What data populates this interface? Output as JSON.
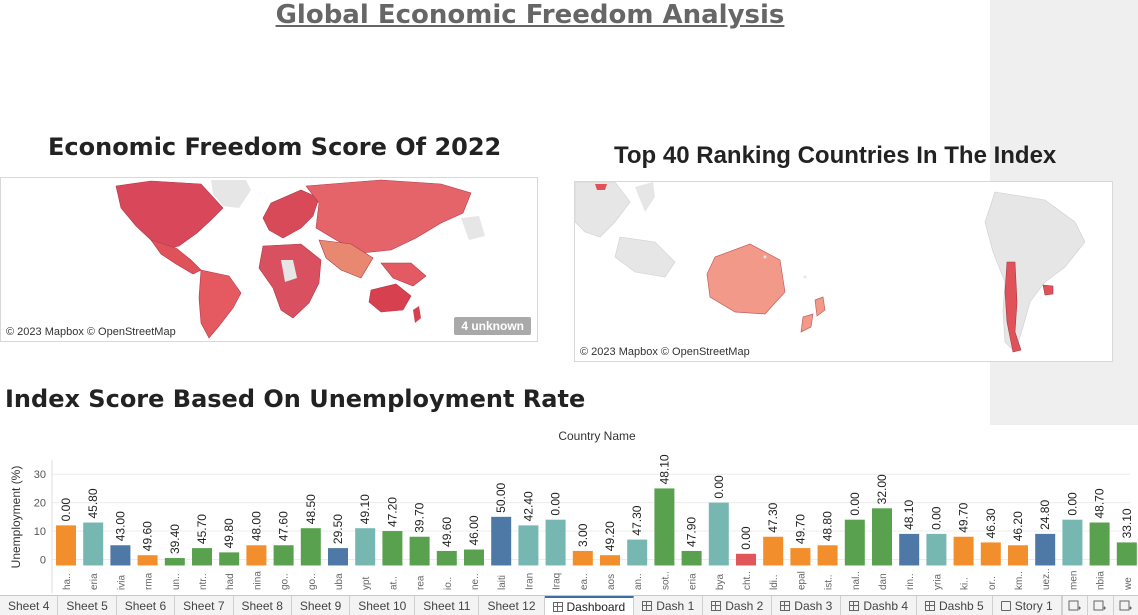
{
  "dashboard": {
    "title": "Global  Economic Freedom Analysis"
  },
  "map_left": {
    "title": "Economic Freedom Score Of 2022",
    "attribution": "© 2023 Mapbox © OpenStreetMap",
    "unknown_badge": "4 unknown"
  },
  "map_right": {
    "title": "Top 40 Ranking Countries In The Index",
    "attribution": "© 2023 Mapbox © OpenStreetMap"
  },
  "colors": {
    "orange": "#f28e2b",
    "teal": "#76b7b2",
    "blue": "#4e79a7",
    "green": "#59a14f",
    "red": "#e15759",
    "map_red": "#e0525a",
    "map_salmon": "#f2998a",
    "land_grey": "#e6e6e6"
  },
  "chart_data": {
    "type": "bar",
    "title": "Index Score Based On Unemployment Rate",
    "header": "Country Name",
    "ylabel": "Unemployment (%)",
    "yticks": [
      0,
      10,
      20,
      30
    ],
    "ylim": [
      -3,
      35
    ],
    "categories": [
      "ha..",
      "eria",
      "ivia",
      "rma",
      "un..",
      "ntr..",
      "had",
      "nina",
      "go..",
      "go..",
      "uba",
      "ypt",
      "at..",
      "rea",
      "io..",
      "ne..",
      "laiti",
      "Iran",
      "Iraq",
      "ea..",
      "aos",
      "an..",
      "sot..",
      "eria",
      "bya",
      "cht..",
      "ldi..",
      "epal",
      "ist..",
      "nal..",
      "dan",
      "rin..",
      "yria",
      "ki..",
      "or..",
      "km..",
      "uez..",
      "men",
      "nbia",
      "we"
    ],
    "values": [
      12,
      13,
      5,
      1.5,
      0.5,
      4,
      2.5,
      5,
      5,
      11,
      4,
      11,
      10,
      8,
      3,
      3.5,
      15,
      12,
      14,
      3,
      1.5,
      7,
      25,
      3,
      20,
      2,
      8,
      4,
      5,
      14,
      18,
      9,
      9,
      8,
      6,
      5,
      9,
      14,
      13,
      6
    ],
    "labels": [
      "0.00",
      "45.80",
      "43.00",
      "49.60",
      "39.40",
      "45.70",
      "49.80",
      "48.00",
      "47.60",
      "48.50",
      "29.50",
      "49.10",
      "47.20",
      "39.70",
      "49.60",
      "46.00",
      "50.00",
      "42.40",
      "0.00",
      "3.00",
      "49.20",
      "47.30",
      "48.10",
      "47.90",
      "0.00",
      "0.00",
      "47.30",
      "49.70",
      "48.80",
      "0.00",
      "32.00",
      "48.10",
      "0.00",
      "49.70",
      "46.30",
      "46.20",
      "24.80",
      "0.00",
      "48.70",
      "33.10"
    ],
    "colors": [
      "orange",
      "teal",
      "blue",
      "orange",
      "green",
      "green",
      "green",
      "orange",
      "green",
      "green",
      "blue",
      "teal",
      "green",
      "green",
      "green",
      "green",
      "blue",
      "teal",
      "teal",
      "orange",
      "orange",
      "teal",
      "green",
      "green",
      "teal",
      "red",
      "orange",
      "orange",
      "orange",
      "green",
      "green",
      "blue",
      "teal",
      "orange",
      "orange",
      "orange",
      "blue",
      "teal",
      "green",
      "green"
    ]
  },
  "tabs": [
    {
      "label": "Sheet 4",
      "icon": "none",
      "active": false
    },
    {
      "label": "Sheet 5",
      "icon": "none",
      "active": false
    },
    {
      "label": "Sheet 6",
      "icon": "none",
      "active": false
    },
    {
      "label": "Sheet 7",
      "icon": "none",
      "active": false
    },
    {
      "label": "Sheet 8",
      "icon": "none",
      "active": false
    },
    {
      "label": "Sheet 9",
      "icon": "none",
      "active": false
    },
    {
      "label": "Sheet 10",
      "icon": "none",
      "active": false
    },
    {
      "label": "Sheet 11",
      "icon": "none",
      "active": false
    },
    {
      "label": "Sheet 12",
      "icon": "none",
      "active": false
    },
    {
      "label": "Dashboard",
      "icon": "dashboard-icon",
      "active": true
    },
    {
      "label": "Dash 1",
      "icon": "dashboard-icon",
      "active": false
    },
    {
      "label": "Dash 2",
      "icon": "dashboard-icon",
      "active": false
    },
    {
      "label": "Dash 3",
      "icon": "dashboard-icon",
      "active": false
    },
    {
      "label": "Dashb 4",
      "icon": "dashboard-icon",
      "active": false
    },
    {
      "label": "Dashb 5",
      "icon": "dashboard-icon",
      "active": false
    },
    {
      "label": "Story 1",
      "icon": "story-icon",
      "active": false
    }
  ]
}
